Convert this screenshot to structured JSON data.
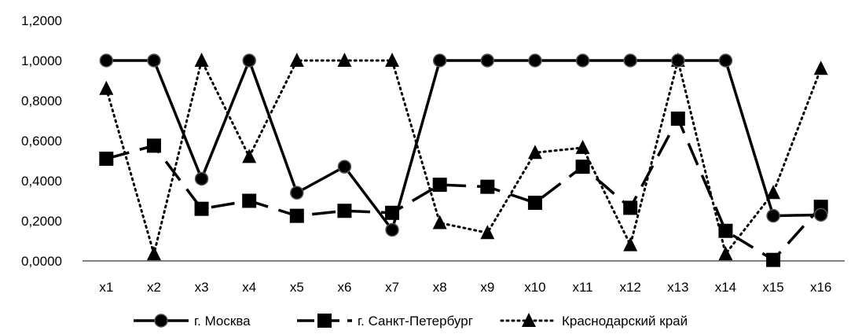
{
  "chart_data": {
    "type": "line",
    "title": "",
    "xlabel": "",
    "ylabel": "",
    "categories": [
      "x1",
      "x2",
      "x3",
      "x4",
      "x5",
      "x6",
      "x7",
      "x8",
      "x9",
      "x10",
      "x11",
      "x12",
      "x13",
      "x14",
      "x15",
      "x16"
    ],
    "ylim": [
      0,
      1.2
    ],
    "yticks": [
      "0,0000",
      "0,2000",
      "0,4000",
      "0,6000",
      "0,8000",
      "1,0000",
      "1,2000"
    ],
    "ytick_values": [
      0,
      0.2,
      0.4,
      0.6,
      0.8,
      1.0,
      1.2
    ],
    "grid": false,
    "legend_position": "bottom",
    "series": [
      {
        "name": "г. Москва",
        "marker": "circle",
        "line": "solid",
        "color": "#000000",
        "values": [
          1.0,
          1.0,
          0.41,
          1.0,
          0.34,
          0.47,
          0.155,
          1.0,
          1.0,
          1.0,
          1.0,
          1.0,
          1.0,
          1.0,
          0.225,
          0.23
        ]
      },
      {
        "name": "г. Санкт-Петербург",
        "marker": "square",
        "line": "dashed",
        "color": "#000000",
        "values": [
          0.51,
          0.575,
          0.26,
          0.3,
          0.225,
          0.25,
          0.24,
          0.38,
          0.37,
          0.29,
          0.47,
          0.265,
          0.71,
          0.15,
          0.005,
          0.27
        ]
      },
      {
        "name": "Краснодарский край",
        "marker": "triangle",
        "line": "dotted",
        "color": "#000000",
        "values": [
          0.86,
          0.035,
          1.0,
          0.52,
          1.0,
          1.0,
          1.0,
          0.19,
          0.14,
          0.54,
          0.565,
          0.08,
          1.0,
          0.035,
          0.34,
          0.96
        ]
      }
    ]
  }
}
